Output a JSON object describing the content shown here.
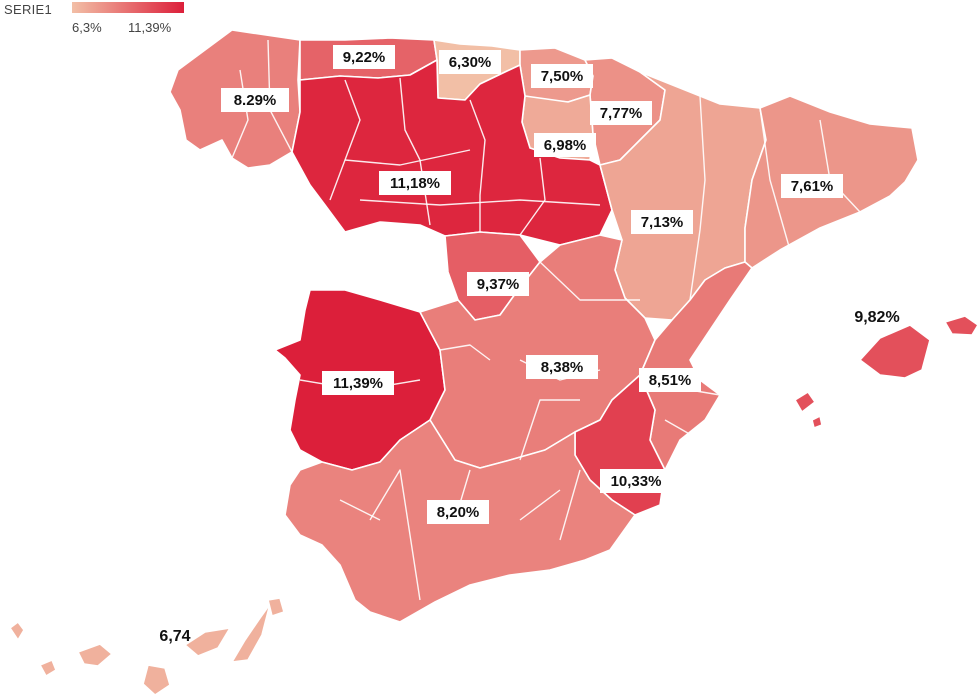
{
  "legend": {
    "title": "SERIE1",
    "min_label": "6,3%",
    "max_label": "11,39%",
    "min_value": 6.3,
    "max_value": 11.39,
    "color_low": "#f2bfa6",
    "color_high": "#dc1f3a"
  },
  "colors": {
    "ocean": "#ffffff",
    "border": "#ffffff"
  },
  "regions": [
    {
      "name": "Galicia",
      "label": "8.29%",
      "value": 8.29
    },
    {
      "name": "Asturias",
      "label": "9,22%",
      "value": 9.22
    },
    {
      "name": "Cantabria",
      "label": "6,30%",
      "value": 6.3
    },
    {
      "name": "País Vasco",
      "label": "7,50%",
      "value": 7.5
    },
    {
      "name": "Navarra",
      "label": "7,77%",
      "value": 7.77
    },
    {
      "name": "La Rioja",
      "label": "6,98%",
      "value": 6.98
    },
    {
      "name": "Castilla y León",
      "label": "11,18%",
      "value": 11.18
    },
    {
      "name": "Aragón",
      "label": "7,13%",
      "value": 7.13
    },
    {
      "name": "Cataluña",
      "label": "7,61%",
      "value": 7.61
    },
    {
      "name": "Madrid",
      "label": "9,37%",
      "value": 9.37
    },
    {
      "name": "Extremadura",
      "label": "11,39%",
      "value": 11.39
    },
    {
      "name": "Castilla-La Mancha",
      "label": "8,38%",
      "value": 8.38
    },
    {
      "name": "Comunidad Valenciana",
      "label": "8,51%",
      "value": 8.51
    },
    {
      "name": "Islas Baleares",
      "label": "9,82%",
      "value": 9.82
    },
    {
      "name": "Murcia",
      "label": "10,33%",
      "value": 10.33
    },
    {
      "name": "Andalucía",
      "label": "8,20%",
      "value": 8.2
    },
    {
      "name": "Canarias",
      "label": "6,74",
      "value": 6.74
    }
  ]
}
